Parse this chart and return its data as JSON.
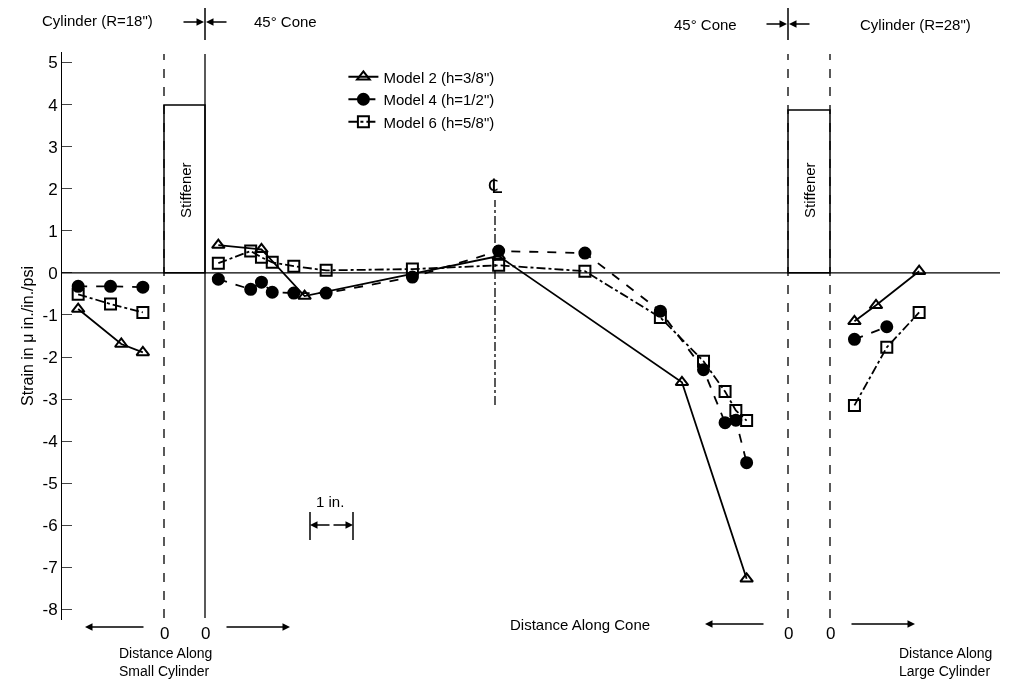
{
  "chart_data": {
    "type": "line",
    "ylabel": "Strain in μ in./in./psi",
    "categories": [
      null,
      null,
      null,
      null,
      null,
      null,
      null,
      null,
      null,
      null,
      null,
      null,
      null,
      null,
      null,
      null,
      null,
      null,
      null,
      null,
      null,
      null,
      null,
      null,
      null,
      null,
      null,
      null,
      null,
      null,
      null,
      null,
      null,
      null,
      null,
      null,
      null,
      null,
      null,
      null,
      null,
      null,
      null,
      null,
      null,
      null,
      null,
      null,
      null,
      null,
      null,
      null,
      null,
      null,
      null,
      null,
      null,
      null,
      null,
      null,
      null,
      null,
      null,
      null,
      null,
      null,
      null,
      null,
      null,
      null,
      null,
      null,
      null,
      null,
      null,
      null,
      null,
      null,
      null,
      null,
      null,
      null,
      null,
      null,
      null,
      null,
      null
    ],
    "ylim": [
      -8.25,
      5.25
    ],
    "yticks": [
      -8,
      -7,
      -6,
      -5,
      -4,
      -3,
      -2,
      -1,
      0,
      1,
      2,
      3,
      4,
      5
    ],
    "tick_labels": "y",
    "grid": false,
    "legend": "top",
    "series": [
      {
        "name": "Model 2 (h=3/8\")",
        "color": "#000000",
        "marker": "triangle",
        "line_style": "solid",
        "values": [
          null,
          null,
          null,
          null,
          null,
          null,
          null,
          null,
          null,
          null,
          null,
          null,
          null,
          null,
          0.66,
          null,
          null,
          null,
          0.56,
          null,
          null,
          null,
          -0.55,
          null,
          null,
          null,
          null,
          null,
          null,
          null,
          null,
          null,
          null,
          null,
          null,
          null,
          null,
          null,
          null,
          null,
          0.4,
          null,
          null,
          null,
          null,
          null,
          null,
          null,
          null,
          null,
          null,
          null,
          null,
          null,
          null,
          null,
          null,
          -2.6,
          null,
          null,
          null,
          null,
          null,
          -7.27,
          null,
          null,
          null,
          null,
          null,
          null,
          null,
          null,
          null,
          null,
          null,
          null,
          null,
          null,
          null,
          null,
          null,
          null,
          null,
          null,
          null,
          null,
          null
        ]
      },
      {
        "name": "Model 4 (h=1/2\")",
        "color": "#000000",
        "marker": "circle",
        "line_style": "dashed",
        "values": [
          null,
          null,
          null,
          null,
          null,
          null,
          null,
          null,
          null,
          null,
          null,
          null,
          null,
          null,
          -0.15,
          null,
          null,
          -0.39,
          -0.22,
          -0.46,
          null,
          -0.48,
          null,
          null,
          -0.48,
          null,
          null,
          null,
          null,
          null,
          null,
          null,
          -0.1,
          null,
          null,
          null,
          null,
          null,
          null,
          null,
          0.52,
          null,
          null,
          null,
          null,
          null,
          null,
          null,
          0.47,
          null,
          null,
          null,
          null,
          null,
          null,
          -0.91,
          null,
          null,
          null,
          -2.3,
          null,
          -3.56,
          -3.5,
          -4.51,
          null,
          null,
          null,
          null,
          null,
          null,
          null,
          null,
          null,
          null,
          null,
          null,
          null,
          null,
          null,
          null,
          null,
          null,
          null,
          null,
          null,
          null,
          null
        ]
      },
      {
        "name": "Model 6 (h=5/8\")",
        "color": "#000000",
        "marker": "square",
        "line_style": "dashdot",
        "values": [
          null,
          null,
          null,
          null,
          null,
          null,
          null,
          null,
          null,
          null,
          null,
          null,
          null,
          null,
          0.23,
          null,
          null,
          0.52,
          0.37,
          0.25,
          null,
          0.16,
          null,
          null,
          0.06,
          null,
          null,
          null,
          null,
          null,
          null,
          null,
          0.09,
          null,
          null,
          null,
          null,
          null,
          null,
          null,
          0.18,
          null,
          null,
          null,
          null,
          null,
          null,
          null,
          0.04,
          null,
          null,
          null,
          null,
          null,
          null,
          -1.06,
          null,
          null,
          null,
          -2.1,
          null,
          -2.82,
          -3.27,
          -3.51,
          null,
          null,
          null,
          null,
          null,
          null,
          null,
          null,
          null,
          null,
          null,
          null,
          null,
          null,
          null,
          null,
          null,
          null,
          null,
          null,
          null,
          null,
          null
        ]
      },
      {
        "color": "#000000",
        "marker": "triangle",
        "line_style": "solid",
        "values": [
          null,
          -0.86,
          null,
          null,
          null,
          -1.69,
          null,
          -1.89,
          null,
          null,
          null,
          null,
          null,
          null,
          null,
          null,
          null,
          null,
          null,
          null,
          null,
          null,
          null,
          null,
          null,
          null,
          null,
          null,
          null,
          null,
          null,
          null,
          null,
          null,
          null,
          null,
          null,
          null,
          null,
          null,
          null,
          null,
          null,
          null,
          null,
          null,
          null,
          null,
          null,
          null,
          null,
          null,
          null,
          null,
          null,
          null,
          null,
          null,
          null,
          null,
          null,
          null,
          null,
          null,
          null,
          null,
          null,
          null,
          null,
          null,
          null,
          null,
          null,
          null,
          null,
          null,
          null,
          null,
          null,
          null,
          null,
          null,
          null,
          null,
          null,
          null,
          null
        ]
      },
      {
        "color": "#000000",
        "marker": "triangle",
        "line_style": "solid",
        "values": [
          null,
          null,
          null,
          null,
          null,
          null,
          null,
          null,
          null,
          null,
          null,
          null,
          null,
          null,
          null,
          null,
          null,
          null,
          null,
          null,
          null,
          null,
          null,
          null,
          null,
          null,
          null,
          null,
          null,
          null,
          null,
          null,
          null,
          null,
          null,
          null,
          null,
          null,
          null,
          null,
          null,
          null,
          null,
          null,
          null,
          null,
          null,
          null,
          null,
          null,
          null,
          null,
          null,
          null,
          null,
          null,
          null,
          null,
          null,
          null,
          null,
          null,
          null,
          null,
          null,
          null,
          null,
          null,
          null,
          null,
          null,
          null,
          null,
          -1.15,
          null,
          -0.77,
          null,
          null,
          null,
          0.04,
          null,
          null,
          null,
          null,
          null,
          null,
          null
        ]
      },
      {
        "color": "#000000",
        "marker": "circle",
        "line_style": "dashed",
        "values": [
          null,
          -0.32,
          null,
          null,
          -0.32,
          null,
          null,
          -0.34,
          null,
          null,
          null,
          null,
          null,
          null,
          null,
          null,
          null,
          null,
          null,
          null,
          null,
          null,
          null,
          null,
          null,
          null,
          null,
          null,
          null,
          null,
          null,
          null,
          null,
          null,
          null,
          null,
          null,
          null,
          null,
          null,
          null,
          null,
          null,
          null,
          null,
          null,
          null,
          null,
          null,
          null,
          null,
          null,
          null,
          null,
          null,
          null,
          null,
          null,
          null,
          null,
          null,
          null,
          null,
          null,
          null,
          null,
          null,
          null,
          null,
          null,
          null,
          null,
          null,
          null,
          null,
          null,
          null,
          null,
          null,
          null,
          null,
          null,
          null,
          null,
          null,
          null,
          null
        ]
      },
      {
        "color": "#000000",
        "marker": "circle",
        "line_style": "dashed",
        "values": [
          null,
          null,
          null,
          null,
          null,
          null,
          null,
          null,
          null,
          null,
          null,
          null,
          null,
          null,
          null,
          null,
          null,
          null,
          null,
          null,
          null,
          null,
          null,
          null,
          null,
          null,
          null,
          null,
          null,
          null,
          null,
          null,
          null,
          null,
          null,
          null,
          null,
          null,
          null,
          null,
          null,
          null,
          null,
          null,
          null,
          null,
          null,
          null,
          null,
          null,
          null,
          null,
          null,
          null,
          null,
          null,
          null,
          null,
          null,
          null,
          null,
          null,
          null,
          null,
          null,
          null,
          null,
          null,
          null,
          null,
          null,
          null,
          null,
          -1.58,
          null,
          null,
          -1.28,
          null,
          null,
          null,
          null,
          null,
          null,
          null,
          null,
          null,
          null
        ]
      },
      {
        "color": "#000000",
        "marker": "square",
        "line_style": "dashdot",
        "values": [
          null,
          -0.51,
          null,
          null,
          -0.74,
          null,
          null,
          -0.94,
          null,
          null,
          null,
          null,
          null,
          null,
          null,
          null,
          null,
          null,
          null,
          null,
          null,
          null,
          null,
          null,
          null,
          null,
          null,
          null,
          null,
          null,
          null,
          null,
          null,
          null,
          null,
          null,
          null,
          null,
          null,
          null,
          null,
          null,
          null,
          null,
          null,
          null,
          null,
          null,
          null,
          null,
          null,
          null,
          null,
          null,
          null,
          null,
          null,
          null,
          null,
          null,
          null,
          null,
          null,
          null,
          null,
          null,
          null,
          null,
          null,
          null,
          null,
          null,
          null,
          null,
          null,
          null,
          null,
          null,
          null,
          null,
          null,
          null,
          null,
          null,
          null,
          null,
          null
        ]
      },
      {
        "color": "#000000",
        "marker": "square",
        "line_style": "dashdot",
        "values": [
          null,
          null,
          null,
          null,
          null,
          null,
          null,
          null,
          null,
          null,
          null,
          null,
          null,
          null,
          null,
          null,
          null,
          null,
          null,
          null,
          null,
          null,
          null,
          null,
          null,
          null,
          null,
          null,
          null,
          null,
          null,
          null,
          null,
          null,
          null,
          null,
          null,
          null,
          null,
          null,
          null,
          null,
          null,
          null,
          null,
          null,
          null,
          null,
          null,
          null,
          null,
          null,
          null,
          null,
          null,
          null,
          null,
          null,
          null,
          null,
          null,
          null,
          null,
          null,
          null,
          null,
          null,
          null,
          null,
          null,
          null,
          null,
          null,
          -3.15,
          null,
          null,
          -1.77,
          null,
          null,
          -0.94,
          null,
          null,
          null,
          null,
          null,
          null,
          null
        ]
      }
    ],
    "ref_lines": [
      {
        "axis": "y",
        "value": 0,
        "line_style": "solid"
      }
    ],
    "annotations": [
      "Cylinder (R=18\")",
      "45° Cone",
      "45° Cone",
      "Cylinder (R=28\")",
      "1 in.",
      "Distance Along\nSmall Cylinder",
      "Distance Along Cone",
      "Distance Along\nLarge Cylinder",
      "0",
      "0",
      "0",
      "0",
      "Stiffener",
      "Stiffener",
      "℄"
    ]
  }
}
